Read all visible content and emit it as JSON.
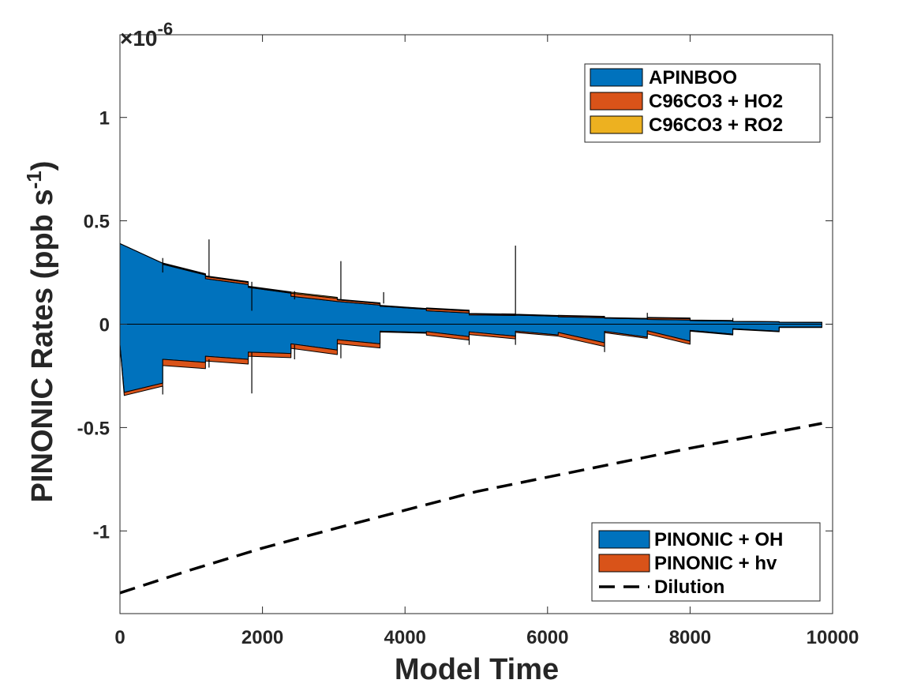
{
  "chart_data": {
    "type": "area",
    "xlabel": "Model Time",
    "ylabel": "PINONIC Rates (ppb s",
    "ylabel_sup": "-1",
    "ylabel_close": ")",
    "y_exponent_label": "×10",
    "y_exponent": "-6",
    "xlim": [
      0,
      10000
    ],
    "ylim": [
      -1.4e-06,
      1.4e-06
    ],
    "x_ticks": [
      0,
      2000,
      4000,
      6000,
      8000,
      10000
    ],
    "x_tick_labels": [
      "0",
      "2000",
      "4000",
      "6000",
      "8000",
      "10000"
    ],
    "y_ticks": [
      -1e-06,
      -5e-07,
      0,
      5e-07,
      1e-06
    ],
    "y_tick_labels": [
      "-1",
      "-0.5",
      "0",
      "0.5",
      "1"
    ],
    "grid": false,
    "colors": {
      "blue": "#0072BD",
      "orange": "#D95319",
      "yellow": "#EDB120",
      "dilution": "#000000"
    },
    "legend_top": {
      "placement": "top-right",
      "entries": [
        {
          "label": "APINBOO",
          "color": "#0072BD"
        },
        {
          "label": "C96CO3 + HO2",
          "color": "#D95319"
        },
        {
          "label": "C96CO3 + RO2",
          "color": "#EDB120"
        }
      ]
    },
    "legend_bottom": {
      "placement": "bottom-right",
      "entries": [
        {
          "label": "PINONIC + OH",
          "color": "#0072BD",
          "style": "area"
        },
        {
          "label": "PINONIC + hv",
          "color": "#D95319",
          "style": "area"
        },
        {
          "label": "Dilution",
          "color": "#000000",
          "style": "dashed"
        }
      ]
    },
    "production": {
      "x": [
        0,
        600,
        600,
        1200,
        1200,
        1800,
        1800,
        2400,
        2400,
        3050,
        3050,
        3650,
        3650,
        4300,
        4300,
        4900,
        4900,
        5550,
        5550,
        6150,
        6150,
        6800,
        6800,
        7400,
        7400,
        8000,
        8000,
        8600,
        8600,
        9250,
        9250,
        9850
      ],
      "series": [
        {
          "name": "APINBOO",
          "values": [
            3.9e-07,
            2.95e-07,
            2.9e-07,
            2.38e-07,
            2.2e-07,
            1.92e-07,
            1.78e-07,
            1.5e-07,
            1.35e-07,
            1.1e-07,
            1.1e-07,
            9.2e-08,
            8.7e-08,
            7.2e-08,
            6.5e-08,
            5.4e-08,
            4.5e-08,
            4.2e-08,
            4.4e-08,
            3.8e-08,
            3.6e-08,
            3.1e-08,
            2.9e-08,
            2.5e-08,
            2.3e-08,
            2e-08,
            1.7e-08,
            1.5e-08,
            1.3e-08,
            1.1e-08,
            9e-09,
            8e-09
          ]
        },
        {
          "name": "C96CO3 + HO2",
          "values": [
            0,
            0,
            4e-09,
            4e-09,
            1e-08,
            1e-08,
            4e-09,
            4e-09,
            1.5e-08,
            1.5e-08,
            8e-09,
            8e-09,
            3e-09,
            3e-09,
            1e-08,
            1e-08,
            5e-09,
            5e-09,
            3e-09,
            3e-09,
            5e-09,
            5e-09,
            2e-09,
            2e-09,
            7e-09,
            7e-09,
            2e-09,
            2e-09,
            1e-09,
            1e-09,
            1e-09,
            1e-09
          ]
        },
        {
          "name": "C96CO3 + RO2",
          "values": [
            0,
            0,
            2e-09,
            2e-09,
            4e-09,
            4e-09,
            2e-09,
            2e-09,
            5e-09,
            5e-09,
            3e-09,
            3e-09,
            1e-09,
            1e-09,
            4e-09,
            4e-09,
            2e-09,
            2e-09,
            1e-09,
            1e-09,
            2e-09,
            2e-09,
            1e-09,
            1e-09,
            3e-09,
            3e-09,
            1e-09,
            1e-09,
            0,
            0,
            0,
            0
          ]
        }
      ]
    },
    "loss": {
      "x": [
        0,
        60,
        600,
        600,
        1200,
        1200,
        1800,
        1800,
        2400,
        2400,
        3050,
        3050,
        3650,
        3650,
        4300,
        4300,
        4900,
        4900,
        5550,
        5550,
        6150,
        6150,
        6800,
        6800,
        7400,
        7400,
        8000,
        8000,
        8600,
        8600,
        9250,
        9250,
        9850
      ],
      "series": [
        {
          "name": "PINONIC + OH",
          "values": [
            -1e-07,
            -3.3e-07,
            -2.85e-07,
            -1.7e-07,
            -1.85e-07,
            -1.55e-07,
            -1.7e-07,
            -1.35e-07,
            -1.42e-07,
            -9.5e-08,
            -1.25e-07,
            -7.5e-08,
            -9.5e-08,
            -3.4e-08,
            -4e-08,
            -3.6e-08,
            -6e-08,
            -3.7e-08,
            -5.8e-08,
            -3.4e-08,
            -5.2e-08,
            -4e-08,
            -9e-08,
            -3.5e-08,
            -6.3e-08,
            -3.2e-08,
            -8.2e-08,
            -3e-08,
            -4.8e-08,
            -2.2e-08,
            -3.4e-08,
            -1.4e-08,
            -1.4e-08
          ]
        },
        {
          "name": "PINONIC + hv",
          "values": [
            -5e-09,
            -1.5e-08,
            -1.5e-08,
            -3e-08,
            -3e-08,
            -2.3e-08,
            -2.3e-08,
            -2e-08,
            -2e-08,
            -2.2e-08,
            -2.2e-08,
            -2e-08,
            -2e-08,
            -4e-09,
            -4e-09,
            -1.7e-08,
            -1.7e-08,
            -1.3e-08,
            -1.3e-08,
            -6e-09,
            -6e-09,
            -1.8e-08,
            -1.8e-08,
            -6e-09,
            -6e-09,
            -1.5e-08,
            -1.5e-08,
            -4e-09,
            -4e-09,
            -3e-09,
            -3e-09,
            -2e-09,
            -2e-09
          ]
        }
      ]
    },
    "spikes": [
      {
        "x": 600,
        "y0": 2.5e-07,
        "y1": 3.2e-07
      },
      {
        "x": 600,
        "y0": -3e-07,
        "y1": -3.4e-07
      },
      {
        "x": 1250,
        "y0": 2.3e-07,
        "y1": 4.1e-07
      },
      {
        "x": 1250,
        "y0": -1.7e-07,
        "y1": -2.1e-07
      },
      {
        "x": 1850,
        "y0": 6.5e-08,
        "y1": 2.05e-07
      },
      {
        "x": 1850,
        "y0": -1.35e-07,
        "y1": -3.35e-07
      },
      {
        "x": 2450,
        "y0": 1.2e-07,
        "y1": 1.6e-07
      },
      {
        "x": 2450,
        "y0": -1e-07,
        "y1": -1.7e-07
      },
      {
        "x": 3100,
        "y0": 1.2e-07,
        "y1": 3.05e-07
      },
      {
        "x": 3100,
        "y0": -1e-07,
        "y1": -1.65e-07
      },
      {
        "x": 3700,
        "y0": 1e-07,
        "y1": 1.55e-07
      },
      {
        "x": 4900,
        "y0": -4e-08,
        "y1": -1e-07
      },
      {
        "x": 5550,
        "y0": 4.5e-08,
        "y1": 3.8e-07
      },
      {
        "x": 5550,
        "y0": -5e-08,
        "y1": -1e-07
      },
      {
        "x": 6800,
        "y0": -3.5e-08,
        "y1": -1.35e-07
      },
      {
        "x": 7400,
        "y0": 2.5e-08,
        "y1": 5.5e-08
      },
      {
        "x": 8600,
        "y0": 1.5e-08,
        "y1": 3e-08
      },
      {
        "x": 9250,
        "y0": -1.4e-08,
        "y1": -2.5e-08
      }
    ],
    "dilution": {
      "x": [
        0,
        1000,
        2000,
        3000,
        4000,
        5000,
        6000,
        7000,
        8000,
        9000,
        9850
      ],
      "values": [
        -1.3e-06,
        -1.188e-06,
        -1.083e-06,
        -9.9e-07,
        -9e-07,
        -8.1e-07,
        -7.4e-07,
        -6.7e-07,
        -6e-07,
        -5.35e-07,
        -4.8e-07
      ]
    }
  }
}
